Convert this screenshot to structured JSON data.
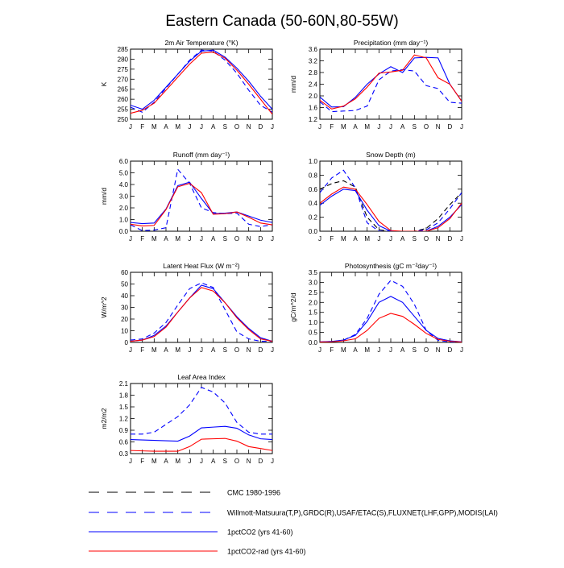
{
  "page": {
    "title": "Eastern Canada (50-60N,80-55W)"
  },
  "months": [
    "J",
    "F",
    "M",
    "A",
    "M",
    "J",
    "J",
    "A",
    "S",
    "O",
    "N",
    "D",
    "J"
  ],
  "colors": {
    "cmc": "#000000",
    "obs": "#0000ff",
    "model": "#0000ff",
    "model_rad": "#ff0000"
  },
  "legend": [
    {
      "label": "CMC 1980-1996",
      "style": "dashed",
      "color": "#000000"
    },
    {
      "label": "Willmott-Matsuura(T,P),GRDC(R),USAF/ETAC(S),FLUXNET(LHF,GPP),MODIS(LAI)",
      "style": "dashed",
      "color": "#0000ff"
    },
    {
      "label": "1pctCO2 (yrs 41-60)",
      "style": "solid",
      "color": "#0000ff"
    },
    {
      "label": "1pctCO2-rad (yrs 41-60)",
      "style": "solid",
      "color": "#ff0000"
    }
  ],
  "chart_data": [
    {
      "type": "line",
      "title": "2m Air Temperature (°K)",
      "ylabel": "K",
      "ylim": [
        250,
        285
      ],
      "yticks": [
        "250",
        "255",
        "260",
        "265",
        "270",
        "275",
        "280",
        "285"
      ],
      "x": [
        "J",
        "F",
        "M",
        "A",
        "M",
        "J",
        "J",
        "A",
        "S",
        "O",
        "N",
        "D",
        "J"
      ],
      "series": [
        {
          "role": "obs",
          "color": "#0000ff",
          "style": "dashed",
          "values": [
            256,
            253.5,
            258.5,
            265.5,
            272.5,
            279.5,
            284.5,
            284,
            279.5,
            273,
            264.5,
            257,
            253.5
          ]
        },
        {
          "role": "model",
          "color": "#0000ff",
          "style": "solid",
          "values": [
            257,
            255,
            259.5,
            266,
            272.5,
            279,
            284,
            284.5,
            281,
            275.5,
            269,
            261.5,
            255
          ]
        },
        {
          "role": "model_rad",
          "color": "#ff0000",
          "style": "solid",
          "values": [
            253,
            254.5,
            258,
            264.5,
            271,
            277.5,
            283,
            283.5,
            280.5,
            274.5,
            267.5,
            260,
            252.5
          ]
        }
      ]
    },
    {
      "type": "line",
      "title": "Precipitation (mm day⁻¹)",
      "ylabel": "mm/d",
      "ylim": [
        1.2,
        3.6
      ],
      "yticks": [
        "1.2",
        "1.6",
        "2.0",
        "2.4",
        "2.8",
        "3.2",
        "3.6"
      ],
      "x": [
        "J",
        "F",
        "M",
        "A",
        "M",
        "J",
        "J",
        "A",
        "S",
        "O",
        "N",
        "D",
        "J"
      ],
      "series": [
        {
          "role": "obs",
          "color": "#0000ff",
          "style": "dashed",
          "values": [
            1.8,
            1.46,
            1.48,
            1.5,
            1.65,
            2.55,
            2.85,
            2.9,
            2.85,
            2.35,
            2.25,
            1.78,
            1.75
          ]
        },
        {
          "role": "model",
          "color": "#0000ff",
          "style": "solid",
          "values": [
            1.96,
            1.62,
            1.63,
            1.95,
            2.4,
            2.75,
            3.0,
            2.8,
            3.3,
            3.32,
            3.3,
            2.4,
            1.82
          ]
        },
        {
          "role": "model_rad",
          "color": "#ff0000",
          "style": "solid",
          "values": [
            1.85,
            1.55,
            1.65,
            1.9,
            2.3,
            2.78,
            2.82,
            2.88,
            3.4,
            3.3,
            2.62,
            2.4,
            1.82
          ]
        }
      ]
    },
    {
      "type": "line",
      "title": "Runoff (mm day⁻¹)",
      "ylabel": "mm/d",
      "ylim": [
        0,
        6
      ],
      "yticks": [
        "0.0",
        "1.0",
        "2.0",
        "3.0",
        "4.0",
        "5.0",
        "6.0"
      ],
      "x": [
        "J",
        "F",
        "M",
        "A",
        "M",
        "J",
        "J",
        "A",
        "S",
        "O",
        "N",
        "D",
        "J"
      ],
      "series": [
        {
          "role": "obs",
          "color": "#0000ff",
          "style": "dashed",
          "values": [
            0.55,
            0.05,
            0.1,
            0.3,
            5.3,
            4.1,
            2.0,
            1.6,
            1.5,
            1.55,
            0.6,
            0.4,
            0.55
          ]
        },
        {
          "role": "model",
          "color": "#0000ff",
          "style": "solid",
          "values": [
            0.75,
            0.65,
            0.7,
            1.9,
            3.9,
            4.2,
            2.8,
            1.5,
            1.55,
            1.65,
            1.3,
            0.95,
            0.75
          ]
        },
        {
          "role": "model_rad",
          "color": "#ff0000",
          "style": "solid",
          "values": [
            0.6,
            0.45,
            0.5,
            1.85,
            3.8,
            4.1,
            3.3,
            1.45,
            1.5,
            1.65,
            1.2,
            0.7,
            0.55
          ]
        }
      ]
    },
    {
      "type": "line",
      "title": "Snow Depth (m)",
      "ylabel": "",
      "ylim": [
        0,
        1
      ],
      "yticks": [
        "0.0",
        "0.2",
        "0.4",
        "0.6",
        "0.8",
        "1.0"
      ],
      "x": [
        "J",
        "F",
        "M",
        "A",
        "M",
        "J",
        "J",
        "A",
        "S",
        "O",
        "N",
        "D",
        "J"
      ],
      "series": [
        {
          "role": "cmc",
          "color": "#000000",
          "style": "dashed",
          "values": [
            0.6,
            0.68,
            0.72,
            0.63,
            0.2,
            0.02,
            0.0,
            0.0,
            0.0,
            0.04,
            0.18,
            0.38,
            0.55
          ]
        },
        {
          "role": "obs",
          "color": "#0000ff",
          "style": "dashed",
          "values": [
            0.55,
            0.76,
            0.87,
            0.62,
            0.12,
            0.0,
            0.0,
            0.0,
            0.0,
            0.02,
            0.12,
            0.32,
            0.55
          ]
        },
        {
          "role": "model",
          "color": "#0000ff",
          "style": "solid",
          "values": [
            0.37,
            0.5,
            0.6,
            0.58,
            0.3,
            0.08,
            0.0,
            0.0,
            0.0,
            0.0,
            0.07,
            0.2,
            0.38
          ]
        },
        {
          "role": "model_rad",
          "color": "#ff0000",
          "style": "solid",
          "values": [
            0.4,
            0.53,
            0.63,
            0.6,
            0.38,
            0.14,
            0.01,
            0.0,
            0.0,
            0.0,
            0.05,
            0.18,
            0.4
          ]
        }
      ]
    },
    {
      "type": "line",
      "title": "Latent Heat Flux (W m⁻²)",
      "ylabel": "W/m^2",
      "ylim": [
        0,
        60
      ],
      "yticks": [
        "0",
        "10",
        "20",
        "30",
        "40",
        "50",
        "60"
      ],
      "x": [
        "J",
        "F",
        "M",
        "A",
        "M",
        "J",
        "J",
        "A",
        "S",
        "O",
        "N",
        "D",
        "J"
      ],
      "series": [
        {
          "role": "obs",
          "color": "#0000ff",
          "style": "dashed",
          "values": [
            2,
            3,
            8,
            17,
            32,
            46,
            51,
            47,
            28,
            9,
            3,
            1,
            1
          ]
        },
        {
          "role": "model",
          "color": "#0000ff",
          "style": "solid",
          "values": [
            1,
            2,
            6,
            14,
            26,
            38,
            49,
            46,
            34,
            22,
            12,
            4,
            1
          ]
        },
        {
          "role": "model_rad",
          "color": "#ff0000",
          "style": "solid",
          "values": [
            1,
            2,
            5,
            13,
            26,
            38,
            47,
            44,
            34,
            21,
            11,
            3,
            1
          ]
        }
      ]
    },
    {
      "type": "line",
      "title": "Photosynthesis (gC m⁻²day⁻¹)",
      "ylabel": "gC/m^2/d",
      "ylim": [
        0,
        3.5
      ],
      "yticks": [
        "0.0",
        "0.5",
        "1.0",
        "1.5",
        "2.0",
        "2.5",
        "3.0",
        "3.5"
      ],
      "x": [
        "J",
        "F",
        "M",
        "A",
        "M",
        "J",
        "J",
        "A",
        "S",
        "O",
        "N",
        "D",
        "J"
      ],
      "series": [
        {
          "role": "obs",
          "color": "#0000ff",
          "style": "dashed",
          "values": [
            0.02,
            0.05,
            0.1,
            0.4,
            1.2,
            2.4,
            3.1,
            2.8,
            1.9,
            0.6,
            0.1,
            0.03,
            0.02
          ]
        },
        {
          "role": "model",
          "color": "#0000ff",
          "style": "solid",
          "values": [
            0.03,
            0.05,
            0.12,
            0.35,
            1.05,
            2.0,
            2.3,
            2.0,
            1.3,
            0.6,
            0.2,
            0.08,
            0.03
          ]
        },
        {
          "role": "model_rad",
          "color": "#ff0000",
          "style": "solid",
          "values": [
            0.02,
            0.03,
            0.08,
            0.18,
            0.6,
            1.2,
            1.45,
            1.3,
            0.9,
            0.45,
            0.15,
            0.06,
            0.02
          ]
        }
      ]
    },
    {
      "type": "line",
      "title": "Leaf Area Index",
      "ylabel": "m2/m2",
      "ylim": [
        0.3,
        2.1
      ],
      "yticks": [
        "0.3",
        "0.6",
        "0.9",
        "1.2",
        "1.5",
        "1.8",
        "2.1"
      ],
      "x": [
        "J",
        "F",
        "M",
        "A",
        "M",
        "J",
        "J",
        "A",
        "S",
        "O",
        "N",
        "D",
        "J"
      ],
      "series": [
        {
          "role": "obs",
          "color": "#0000ff",
          "style": "dashed",
          "values": [
            0.8,
            0.8,
            0.85,
            1.05,
            1.25,
            1.55,
            2.0,
            1.88,
            1.6,
            1.1,
            0.85,
            0.8,
            0.8
          ]
        },
        {
          "role": "model",
          "color": "#0000ff",
          "style": "solid",
          "values": [
            0.66,
            0.65,
            0.64,
            0.63,
            0.62,
            0.75,
            0.96,
            0.98,
            1.0,
            0.95,
            0.78,
            0.68,
            0.66
          ]
        },
        {
          "role": "model_rad",
          "color": "#ff0000",
          "style": "solid",
          "values": [
            0.38,
            0.37,
            0.36,
            0.36,
            0.36,
            0.48,
            0.67,
            0.68,
            0.69,
            0.62,
            0.48,
            0.43,
            0.38
          ]
        }
      ]
    }
  ]
}
